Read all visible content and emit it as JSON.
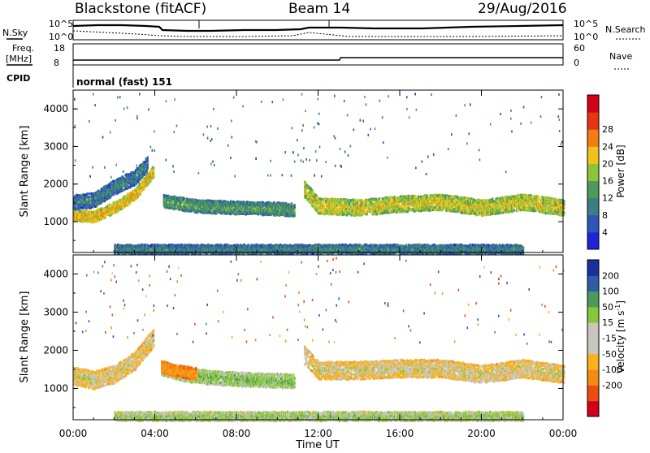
{
  "header": {
    "title": "Blackstone (fitACF)",
    "beam": "Beam 14",
    "date": "29/Aug/2016"
  },
  "top_panels": {
    "nsky_label": "N.Sky",
    "nsearch_label": "N.Search",
    "noise_ticks": [
      "10^5",
      "10^0"
    ],
    "freq_label": "Freq.",
    "freq_unit": "[MHz]",
    "freq_ticks": [
      "18",
      "8"
    ],
    "nave_label": "Nave",
    "nave_ticks": [
      "60",
      "0"
    ],
    "cpid_label": "CPID",
    "cpid_value": "normal (fast) 151"
  },
  "colors": {
    "power_scale": [
      "#1f24d8",
      "#2f55b8",
      "#3c7f82",
      "#4d9a5e",
      "#8ec43a",
      "#f2c21a",
      "#f47d12",
      "#e63510",
      "#d4001a"
    ],
    "velocity_scale": [
      "#d4001a",
      "#ee4d10",
      "#f58b12",
      "#f7b21c",
      "#c8c6bd",
      "#c8c6bd",
      "#86c73b",
      "#4b9b5c",
      "#2f5ba8",
      "#1a2fa0"
    ]
  },
  "chart_data": [
    {
      "type": "heatmap",
      "name": "power",
      "xlabel": "Time UT",
      "ylabel": "Slant Range [km]",
      "x_ticks": [
        "00:00",
        "04:00",
        "08:00",
        "12:00",
        "16:00",
        "20:00",
        "00:00"
      ],
      "y_ticks": [
        "1000",
        "2000",
        "3000",
        "4000"
      ],
      "xlim": [
        0,
        24
      ],
      "ylim": [
        180,
        4500
      ],
      "colorbar_label": "Power [dB]",
      "colorbar_ticks": [
        "4",
        "8",
        "12",
        "16",
        "20",
        "24",
        "28"
      ],
      "colorbar_range": [
        0,
        31
      ],
      "features": [
        {
          "t": [
            0.0,
            1.0,
            2.0,
            3.0,
            3.6,
            3.9
          ],
          "range_center": [
            1200,
            1160,
            1400,
            1750,
            2150,
            2350
          ],
          "width": 260,
          "value": 20
        },
        {
          "t": [
            0.0,
            1.0,
            2.0,
            3.0,
            3.6
          ],
          "range_center": [
            1550,
            1600,
            1950,
            2200,
            2550
          ],
          "width": 350,
          "value": 9
        },
        {
          "t": [
            4.4,
            6.0,
            8.0,
            10.0,
            10.8
          ],
          "range_center": [
            1580,
            1440,
            1400,
            1370,
            1340
          ],
          "width": 300,
          "value": 12
        },
        {
          "t": [
            11.3,
            12.0,
            14.0,
            16.0,
            18.0,
            20.0,
            22.0,
            24.0
          ],
          "range_center": [
            1900,
            1450,
            1400,
            1500,
            1550,
            1400,
            1550,
            1400
          ],
          "width": 380,
          "value": 18
        },
        {
          "t": [
            2.0,
            6.0,
            10.0,
            14.0,
            18.0,
            22.0
          ],
          "range_center": [
            300,
            300,
            300,
            300,
            300,
            300
          ],
          "width": 200,
          "value": 10
        }
      ]
    },
    {
      "type": "heatmap",
      "name": "velocity",
      "xlabel": "Time UT",
      "ylabel": "Slant Range [km]",
      "x_ticks": [
        "00:00",
        "04:00",
        "08:00",
        "12:00",
        "16:00",
        "20:00",
        "00:00"
      ],
      "y_ticks": [
        "1000",
        "2000",
        "3000",
        "4000"
      ],
      "xlim": [
        0,
        24
      ],
      "ylim": [
        180,
        4500
      ],
      "colorbar_label": "Velocity [m s^-1]",
      "colorbar_ticks": [
        "200",
        "100",
        "50",
        "15",
        "-15",
        "-50",
        "-100",
        "-200"
      ],
      "colorbar_range": [
        -250,
        250
      ],
      "features": [
        {
          "t": [
            0.0,
            1.0,
            2.0,
            3.0,
            3.6,
            3.9
          ],
          "range_center": [
            1350,
            1250,
            1400,
            1750,
            2150,
            2350
          ],
          "width": 420,
          "value": 0
        },
        {
          "t": [
            4.3,
            5.5,
            7.0,
            9.0,
            10.8
          ],
          "range_center": [
            1550,
            1380,
            1300,
            1250,
            1220
          ],
          "width": 320,
          "value": 40
        },
        {
          "t": [
            4.3,
            5.0,
            6.0
          ],
          "range_center": [
            1600,
            1480,
            1420
          ],
          "width": 280,
          "value": -60
        },
        {
          "t": [
            11.3,
            12.0,
            14.0,
            16.0,
            18.0,
            20.0,
            22.0,
            24.0
          ],
          "range_center": [
            1900,
            1500,
            1500,
            1550,
            1550,
            1400,
            1550,
            1400
          ],
          "width": 420,
          "value": 0
        },
        {
          "t": [
            2.0,
            6.0,
            10.0,
            14.0,
            18.0,
            22.0
          ],
          "range_center": [
            300,
            300,
            300,
            300,
            300,
            300
          ],
          "width": 200,
          "value": 30
        }
      ]
    }
  ],
  "axis_text": {
    "power_ylabel": "Slant Range [km]",
    "velocity_ylabel": "Slant Range [km]",
    "xlabel": "Time UT",
    "power_cb_label": "Power [dB]",
    "velocity_cb_label": "Velocity [m s",
    "velocity_cb_sup": "-1",
    "velocity_cb_close": "]"
  }
}
